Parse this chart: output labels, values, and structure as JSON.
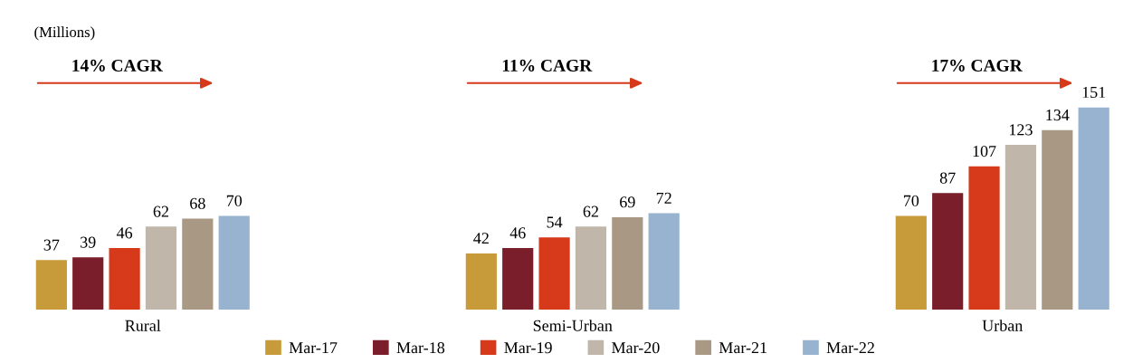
{
  "chart_data": {
    "type": "bar",
    "categories": [
      "Rural",
      "Semi-Urban",
      "Urban"
    ],
    "series": [
      {
        "name": "Mar-17",
        "color": "#c89b3a",
        "values": [
          37,
          42,
          70
        ]
      },
      {
        "name": "Mar-18",
        "color": "#7b1e2b",
        "values": [
          39,
          46,
          87
        ]
      },
      {
        "name": "Mar-19",
        "color": "#d63a1a",
        "values": [
          46,
          54,
          107
        ]
      },
      {
        "name": "Mar-20",
        "color": "#c0b6a9",
        "values": [
          62,
          62,
          123
        ]
      },
      {
        "name": "Mar-21",
        "color": "#a89884",
        "values": [
          68,
          69,
          134
        ]
      },
      {
        "name": "Mar-22",
        "color": "#97b3cf",
        "values": [
          70,
          72,
          151
        ]
      }
    ],
    "data_labels": true,
    "legend": "bottom",
    "grid": false,
    "annotations": [
      "(Millions)",
      "14% CAGR",
      "11% CAGR",
      "17% CAGR"
    ]
  }
}
